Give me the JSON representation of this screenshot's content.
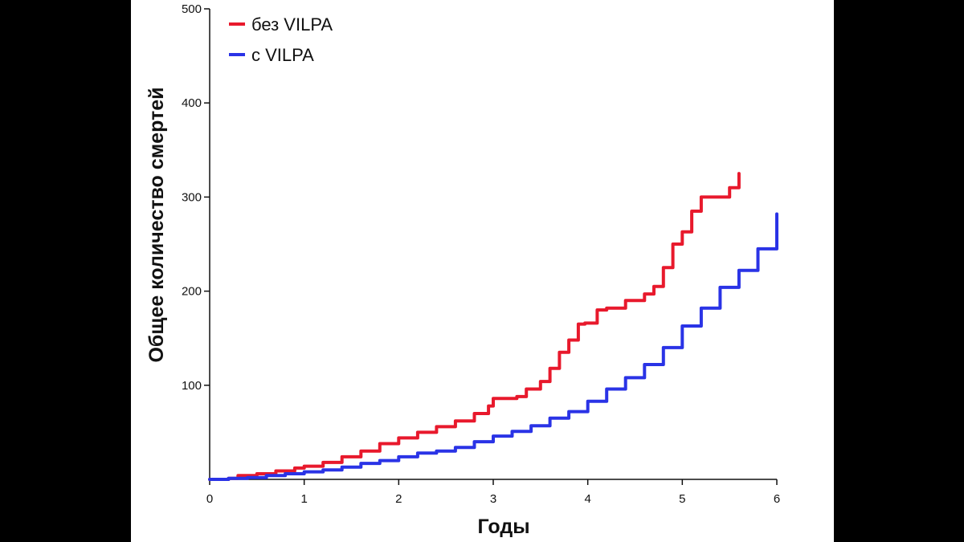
{
  "chart_data": {
    "type": "line",
    "title": "",
    "xlabel": "Годы",
    "ylabel": "Общее количество смертей",
    "xlim": [
      0,
      6
    ],
    "ylim": [
      0,
      500
    ],
    "xticks": [
      "0",
      "1",
      "2",
      "3",
      "4",
      "5",
      "6"
    ],
    "yticks": [
      "100",
      "200",
      "300",
      "400",
      "500"
    ],
    "ytick_values": [
      100,
      200,
      300,
      400,
      500
    ],
    "grid": false,
    "legend_position": "top-left",
    "series": [
      {
        "name": "без VILPA",
        "color": "#e8192c",
        "x": [
          0,
          0.2,
          0.3,
          0.5,
          0.7,
          0.9,
          1.0,
          1.2,
          1.4,
          1.6,
          1.8,
          2.0,
          2.2,
          2.4,
          2.6,
          2.8,
          2.95,
          3.0,
          3.1,
          3.25,
          3.35,
          3.5,
          3.6,
          3.7,
          3.8,
          3.9,
          3.97,
          4.1,
          4.2,
          4.4,
          4.6,
          4.7,
          4.8,
          4.9,
          5.0,
          5.1,
          5.2,
          5.3,
          5.4,
          5.5,
          5.6
        ],
        "y": [
          0,
          1,
          4,
          6,
          9,
          12,
          14,
          18,
          24,
          30,
          38,
          44,
          50,
          56,
          62,
          70,
          78,
          86,
          86,
          88,
          96,
          104,
          118,
          135,
          148,
          165,
          166,
          180,
          182,
          190,
          197,
          205,
          225,
          250,
          263,
          285,
          300,
          300,
          300,
          310,
          325
        ]
      },
      {
        "name": "с VILPA",
        "color": "#2a33e6",
        "x": [
          0,
          0.2,
          0.4,
          0.6,
          0.8,
          1.0,
          1.2,
          1.4,
          1.6,
          1.8,
          2.0,
          2.2,
          2.4,
          2.6,
          2.8,
          3.0,
          3.2,
          3.4,
          3.6,
          3.8,
          4.0,
          4.2,
          4.4,
          4.6,
          4.8,
          5.0,
          5.2,
          5.4,
          5.6,
          5.8,
          6.0
        ],
        "y": [
          0,
          1,
          2,
          4,
          6,
          8,
          10,
          13,
          17,
          20,
          24,
          28,
          30,
          34,
          40,
          46,
          51,
          57,
          65,
          72,
          83,
          96,
          108,
          122,
          140,
          163,
          182,
          204,
          222,
          245,
          282
        ]
      }
    ]
  }
}
